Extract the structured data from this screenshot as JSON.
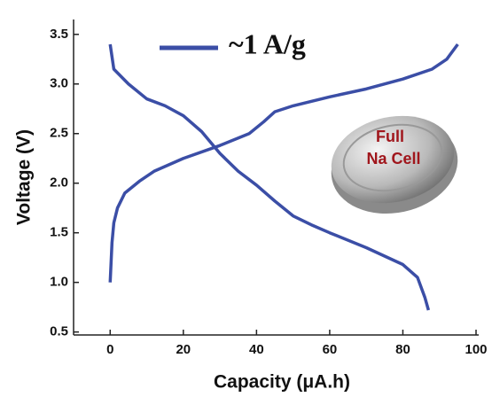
{
  "chart_data": {
    "type": "line",
    "x_label": "Capacity (μA.h)",
    "y_label": "Voltage (V)",
    "xlim": [
      -10,
      100
    ],
    "ylim": [
      0.47,
      3.65
    ],
    "xticks": [
      0,
      20,
      40,
      60,
      80,
      100
    ],
    "yticks": [
      0.5,
      {
        "value": 1.0,
        "label": "1.0"
      },
      1.5,
      {
        "value": 2.0,
        "label": "2.0"
      },
      2.5,
      {
        "value": 3.0,
        "label": "3.0"
      },
      3.5
    ],
    "legend": "~1 A/g",
    "annotations": [
      "Full",
      "Na Cell"
    ],
    "series": [
      {
        "color": "#3b4ea6",
        "x": [
          0,
          0.5,
          1,
          2,
          4,
          8,
          12,
          20,
          30,
          38,
          42,
          45,
          50,
          60,
          70,
          80,
          88,
          92,
          95
        ],
        "values": [
          1.0,
          1.4,
          1.6,
          1.75,
          1.9,
          2.02,
          2.12,
          2.25,
          2.38,
          2.5,
          2.62,
          2.72,
          2.78,
          2.87,
          2.95,
          3.05,
          3.15,
          3.25,
          3.4
        ]
      },
      {
        "color": "#3b4ea6",
        "x": [
          0,
          1,
          5,
          10,
          15,
          20,
          25,
          30,
          35,
          40,
          45,
          50,
          55,
          60,
          70,
          80,
          84,
          86,
          87
        ],
        "values": [
          3.4,
          3.15,
          3.0,
          2.85,
          2.78,
          2.68,
          2.52,
          2.3,
          2.12,
          1.98,
          1.82,
          1.67,
          1.58,
          1.5,
          1.35,
          1.18,
          1.05,
          0.85,
          0.72
        ]
      }
    ]
  }
}
